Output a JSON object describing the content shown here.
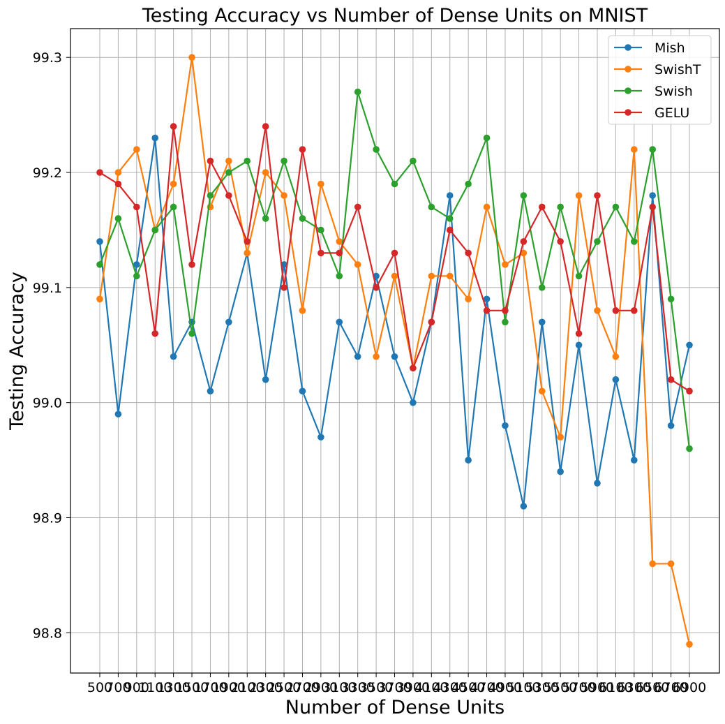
{
  "chart_data": {
    "type": "line",
    "title": "Testing Accuracy vs Number of Dense Units on MNIST",
    "xlabel": "Number of Dense Units",
    "ylabel": "Testing Accuracy",
    "categories": [
      "500",
      "700",
      "900",
      "1100",
      "1300",
      "1500",
      "1700",
      "1900",
      "2100",
      "2300",
      "2500",
      "2700",
      "2900",
      "3100",
      "3300",
      "3500",
      "3700",
      "3900",
      "4100",
      "4300",
      "4500",
      "4700",
      "4900",
      "5100",
      "5300",
      "5500",
      "5700",
      "5900",
      "6100",
      "6300",
      "6500",
      "6700",
      "6900"
    ],
    "ylim": [
      98.765,
      99.325
    ],
    "yticks": [
      "98.8",
      "98.9",
      "99.0",
      "99.1",
      "99.2",
      "99.3"
    ],
    "grid": true,
    "legend_position": "top-right",
    "series": [
      {
        "name": "Mish",
        "color": "#1f77b4",
        "values": [
          99.14,
          98.99,
          99.12,
          99.23,
          99.04,
          99.07,
          99.01,
          99.07,
          99.13,
          99.02,
          99.12,
          99.01,
          98.97,
          99.07,
          99.04,
          99.11,
          99.04,
          99.0,
          99.07,
          99.18,
          98.95,
          99.09,
          98.98,
          98.91,
          99.07,
          98.94,
          99.05,
          98.93,
          99.02,
          98.95,
          99.18,
          98.98,
          99.05
        ]
      },
      {
        "name": "SwishT",
        "color": "#ff7f0e",
        "values": [
          99.09,
          99.2,
          99.22,
          99.15,
          99.19,
          99.3,
          99.17,
          99.21,
          99.13,
          99.2,
          99.18,
          99.08,
          99.19,
          99.14,
          99.12,
          99.04,
          99.11,
          99.03,
          99.11,
          99.11,
          99.09,
          99.17,
          99.12,
          99.13,
          99.01,
          98.97,
          99.18,
          99.08,
          99.04,
          99.22,
          98.86,
          98.86,
          98.79
        ]
      },
      {
        "name": "Swish",
        "color": "#2ca02c",
        "values": [
          99.12,
          99.16,
          99.11,
          99.15,
          99.17,
          99.06,
          99.18,
          99.2,
          99.21,
          99.16,
          99.21,
          99.16,
          99.15,
          99.11,
          99.27,
          99.22,
          99.19,
          99.21,
          99.17,
          99.16,
          99.19,
          99.23,
          99.07,
          99.18,
          99.1,
          99.17,
          99.11,
          99.14,
          99.17,
          99.14,
          99.22,
          99.09,
          98.96
        ]
      },
      {
        "name": "GELU",
        "color": "#d62728",
        "values": [
          99.2,
          99.19,
          99.17,
          99.06,
          99.24,
          99.12,
          99.21,
          99.18,
          99.14,
          99.24,
          99.1,
          99.22,
          99.13,
          99.13,
          99.17,
          99.1,
          99.13,
          99.03,
          99.07,
          99.15,
          99.13,
          99.08,
          99.08,
          99.14,
          99.17,
          99.14,
          99.06,
          99.18,
          99.08,
          99.08,
          99.17,
          99.02,
          99.01
        ]
      }
    ]
  }
}
